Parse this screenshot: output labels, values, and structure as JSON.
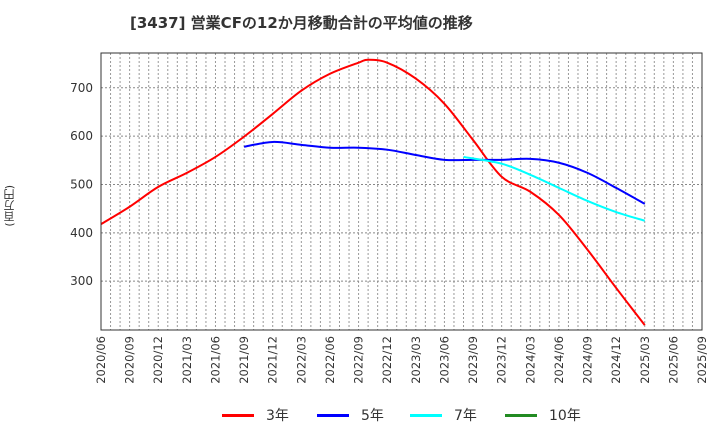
{
  "chart_data": {
    "type": "line",
    "title": "[3437]  営業CFの12か月移動合計の平均値の推移",
    "xlabel": "",
    "ylabel": "(百万円)",
    "ylim": [
      199,
      772
    ],
    "yticks": [
      300,
      400,
      500,
      600,
      700
    ],
    "ytick_labels": [
      "300",
      "400",
      "500",
      "600",
      "700"
    ],
    "x_start": "2020/06",
    "x_unit": "month",
    "xtick_labels": [
      "2020/06",
      "2020/09",
      "2020/12",
      "2021/03",
      "2021/06",
      "2021/09",
      "2021/12",
      "2022/03",
      "2022/06",
      "2022/09",
      "2022/12",
      "2023/03",
      "2023/06",
      "2023/09",
      "2023/12",
      "2024/03",
      "2024/06",
      "2024/09",
      "2024/12",
      "2025/03",
      "2025/06",
      "2025/09"
    ],
    "grid": true,
    "legend_position": "bottom",
    "series": [
      {
        "name": "3年",
        "color": "#ff0000",
        "points": [
          [
            "2020/06",
            418
          ],
          [
            "2020/09",
            454
          ],
          [
            "2020/12",
            495
          ],
          [
            "2021/03",
            524
          ],
          [
            "2021/06",
            557
          ],
          [
            "2021/09",
            599
          ],
          [
            "2021/12",
            646
          ],
          [
            "2022/03",
            694
          ],
          [
            "2022/06",
            729
          ],
          [
            "2022/09",
            752
          ],
          [
            "2022/10",
            758
          ],
          [
            "2022/12",
            752
          ],
          [
            "2023/03",
            719
          ],
          [
            "2023/06",
            667
          ],
          [
            "2023/09",
            592
          ],
          [
            "2023/12",
            516
          ],
          [
            "2024/03",
            485
          ],
          [
            "2024/06",
            437
          ],
          [
            "2024/09",
            365
          ],
          [
            "2024/12",
            286
          ],
          [
            "2025/03",
            209
          ]
        ]
      },
      {
        "name": "5年",
        "color": "#0000ff",
        "points": [
          [
            "2021/09",
            578
          ],
          [
            "2021/12",
            588
          ],
          [
            "2022/03",
            582
          ],
          [
            "2022/06",
            576
          ],
          [
            "2022/09",
            576
          ],
          [
            "2022/12",
            572
          ],
          [
            "2023/03",
            561
          ],
          [
            "2023/06",
            551
          ],
          [
            "2023/09",
            551
          ],
          [
            "2023/12",
            551
          ],
          [
            "2024/03",
            553
          ],
          [
            "2024/06",
            545
          ],
          [
            "2024/09",
            524
          ],
          [
            "2024/12",
            493
          ],
          [
            "2025/03",
            460
          ]
        ]
      },
      {
        "name": "7年",
        "color": "#00ffff",
        "points": [
          [
            "2023/08",
            557
          ],
          [
            "2023/12",
            543
          ],
          [
            "2024/03",
            520
          ],
          [
            "2024/06",
            493
          ],
          [
            "2024/09",
            466
          ],
          [
            "2024/12",
            443
          ],
          [
            "2025/03",
            425
          ]
        ]
      },
      {
        "name": "10年",
        "color": "#228b22",
        "points": []
      }
    ]
  }
}
